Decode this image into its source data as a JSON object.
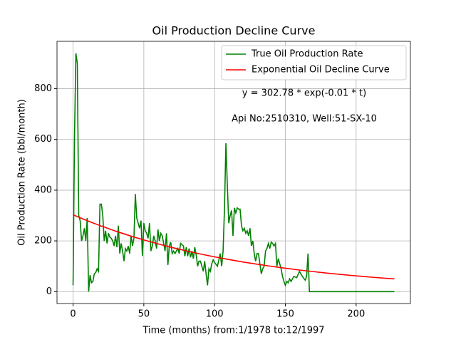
{
  "chart_data": {
    "type": "line",
    "title": "Oil Production Decline Curve",
    "xlabel": "Time (months) from:1/1978 to:12/1997",
    "ylabel": "Oil Production Rate (bbl/month)",
    "annotations": [
      "y = 302.78 * exp(-0.01 * t)",
      "Api No:2510310, Well:51-SX-10"
    ],
    "xlim": [
      -11.35,
      238.35
    ],
    "xticks": [
      0,
      50,
      100,
      150,
      200
    ],
    "ylim": [
      -47,
      987
    ],
    "yticks": [
      0,
      200,
      400,
      600,
      800
    ],
    "grid": true,
    "legend": "upper right",
    "series": [
      {
        "name": "True Oil Production Rate",
        "color": "#008000",
        "x": [
          0,
          1,
          2,
          3,
          4,
          5,
          6,
          7,
          8,
          9,
          10,
          11,
          12,
          13,
          14,
          15,
          16,
          17,
          18,
          19,
          20,
          21,
          22,
          23,
          24,
          25,
          26,
          27,
          28,
          29,
          30,
          31,
          32,
          33,
          34,
          35,
          36,
          37,
          38,
          39,
          40,
          41,
          42,
          43,
          44,
          45,
          46,
          47,
          48,
          49,
          50,
          51,
          52,
          53,
          54,
          55,
          56,
          57,
          58,
          59,
          60,
          61,
          62,
          63,
          64,
          65,
          66,
          67,
          68,
          69,
          70,
          71,
          72,
          73,
          74,
          75,
          76,
          77,
          78,
          79,
          80,
          81,
          82,
          83,
          84,
          85,
          86,
          87,
          88,
          89,
          90,
          91,
          92,
          93,
          94,
          95,
          96,
          97,
          98,
          99,
          100,
          102,
          104,
          105,
          106,
          107,
          108,
          109,
          110,
          111,
          112,
          113,
          114,
          115,
          116,
          117,
          118,
          119,
          120,
          121,
          122,
          123,
          124,
          125,
          126,
          127,
          128,
          129,
          130,
          131,
          132,
          133,
          134,
          135,
          136,
          137,
          138,
          139,
          140,
          141,
          142,
          143,
          144,
          145,
          146,
          147,
          148,
          149,
          150,
          151,
          152,
          153,
          154,
          156,
          158,
          160,
          162,
          164,
          165,
          166,
          167,
          227
        ],
        "values": [
          25,
          600,
          940,
          900,
          300,
          280,
          200,
          220,
          250,
          200,
          290,
          0,
          65,
          35,
          40,
          70,
          75,
          90,
          80,
          345,
          345,
          300,
          200,
          240,
          190,
          230,
          215,
          210,
          200,
          180,
          220,
          175,
          260,
          150,
          190,
          160,
          120,
          170,
          160,
          180,
          150,
          220,
          180,
          210,
          385,
          290,
          270,
          250,
          280,
          140,
          270,
          240,
          230,
          210,
          270,
          160,
          180,
          220,
          200,
          170,
          245,
          200,
          230,
          220,
          190,
          160,
          230,
          105,
          180,
          195,
          150,
          160,
          150,
          160,
          170,
          150,
          190,
          185,
          180,
          140,
          175,
          140,
          170,
          135,
          160,
          130,
          175,
          145,
          100,
          120,
          120,
          100,
          80,
          120,
          70,
          25,
          90,
          80,
          110,
          125,
          115,
          100,
          150,
          100,
          160,
          330,
          585,
          420,
          270,
          300,
          320,
          220,
          330,
          310,
          330,
          325,
          325,
          260,
          240,
          250,
          230,
          240,
          220,
          250,
          180,
          200,
          150,
          120,
          150,
          150,
          110,
          70,
          90,
          100,
          160,
          170,
          190,
          170,
          195,
          190,
          180,
          190,
          100,
          130,
          110,
          90,
          60,
          40,
          25,
          40,
          35,
          50,
          40,
          60,
          55,
          80,
          60,
          45,
          60,
          150,
          0,
          0
        ]
      },
      {
        "name": "Exponential Oil Decline Curve",
        "color": "#ff0000",
        "x": [
          0,
          10,
          20,
          30,
          40,
          50,
          60,
          70,
          80,
          90,
          100,
          110,
          120,
          130,
          140,
          150,
          160,
          170,
          180,
          190,
          200,
          210,
          220,
          227
        ],
        "values": [
          302.8,
          279.7,
          258.4,
          238.7,
          220.5,
          203.7,
          188.2,
          173.8,
          160.6,
          148.3,
          137.0,
          126.6,
          116.9,
          108.0,
          99.8,
          92.2,
          85.1,
          78.7,
          72.7,
          67.1,
          62.0,
          57.3,
          52.9,
          50.1
        ]
      }
    ]
  }
}
